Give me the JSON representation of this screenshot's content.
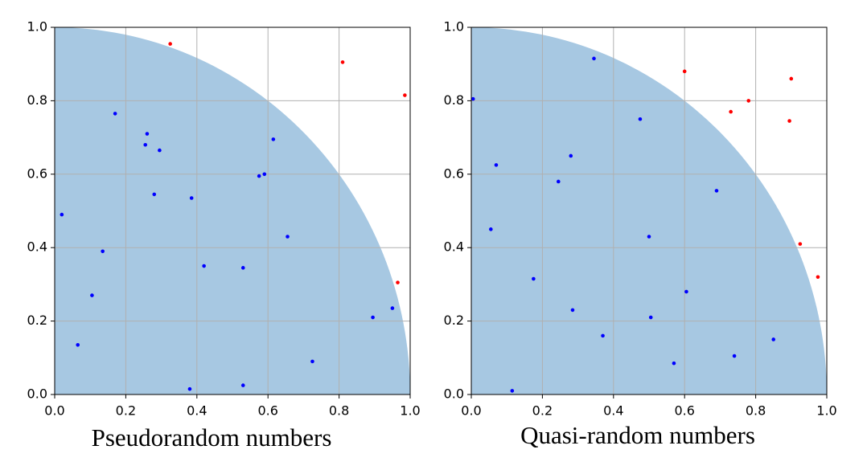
{
  "chart_data": [
    {
      "type": "scatter",
      "title": "Pseudorandom numbers",
      "xlim": [
        0,
        1
      ],
      "ylim": [
        0,
        1
      ],
      "xticks": [
        {
          "value": 0,
          "label": "0.0"
        },
        0.2,
        0.4,
        0.6,
        0.8,
        {
          "value": 1,
          "label": "1.0"
        }
      ],
      "yticks": [
        {
          "value": 0,
          "label": "0.0"
        },
        0.2,
        0.4,
        0.6,
        0.8,
        {
          "value": 1,
          "label": "1.0"
        }
      ],
      "grid": true,
      "area_color": "#a7c8e2",
      "series": [
        {
          "color": "#0000ff",
          "x": [
            0.02,
            0.065,
            0.105,
            0.135,
            0.17,
            0.255,
            0.26,
            0.28,
            0.295,
            0.385,
            0.38,
            0.42,
            0.53,
            0.53,
            0.575,
            0.59,
            0.615,
            0.655,
            0.725,
            0.895,
            0.95
          ],
          "values": [
            0.49,
            0.135,
            0.27,
            0.39,
            0.765,
            0.68,
            0.71,
            0.545,
            0.665,
            0.535,
            0.015,
            0.35,
            0.345,
            0.025,
            0.595,
            0.6,
            0.695,
            0.43,
            0.09,
            0.21,
            0.235
          ]
        },
        {
          "color": "#ff0000",
          "x": [
            0.325,
            0.81,
            0.985,
            0.965
          ],
          "values": [
            0.955,
            0.905,
            0.815,
            0.305
          ]
        }
      ]
    },
    {
      "type": "scatter",
      "title": "Quasi-random numbers",
      "xlim": [
        0,
        1
      ],
      "ylim": [
        0,
        1
      ],
      "xticks": [
        {
          "value": 0,
          "label": "0.0"
        },
        0.2,
        0.4,
        0.6,
        0.8,
        {
          "value": 1,
          "label": "1.0"
        }
      ],
      "yticks": [
        {
          "value": 0,
          "label": "0.0"
        },
        0.2,
        0.4,
        0.6,
        0.8,
        {
          "value": 1,
          "label": "1.0"
        }
      ],
      "grid": true,
      "area_color": "#a7c8e2",
      "series": [
        {
          "color": "#0000ff",
          "x": [
            0.005,
            0.055,
            0.07,
            0.115,
            0.175,
            0.245,
            0.28,
            0.285,
            0.345,
            0.37,
            0.475,
            0.5,
            0.505,
            0.57,
            0.605,
            0.69,
            0.74,
            0.85
          ],
          "values": [
            0.805,
            0.45,
            0.625,
            0.01,
            0.315,
            0.58,
            0.65,
            0.23,
            0.915,
            0.16,
            0.75,
            0.43,
            0.21,
            0.085,
            0.28,
            0.555,
            0.105,
            0.15
          ]
        },
        {
          "color": "#ff0000",
          "x": [
            0.6,
            0.73,
            0.78,
            0.895,
            0.9,
            0.925,
            0.975
          ],
          "values": [
            0.88,
            0.77,
            0.8,
            0.745,
            0.86,
            0.41,
            0.32
          ]
        }
      ]
    }
  ]
}
